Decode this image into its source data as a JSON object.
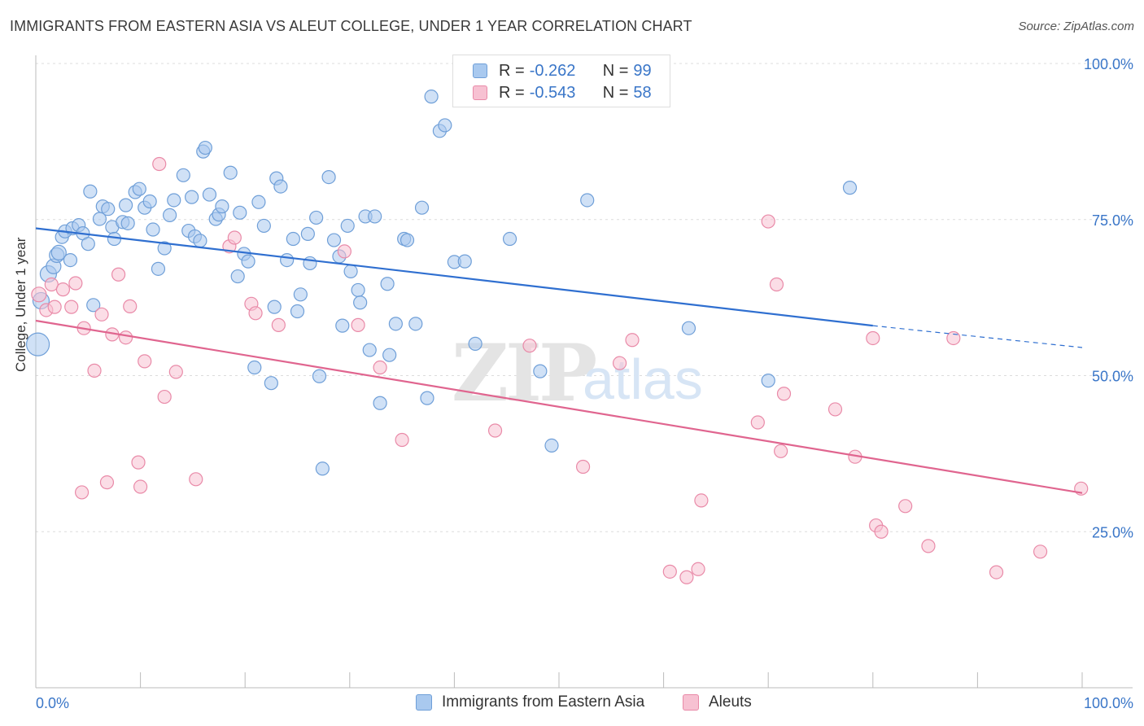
{
  "header": {
    "title": "IMMIGRANTS FROM EASTERN ASIA VS ALEUT COLLEGE, UNDER 1 YEAR CORRELATION CHART",
    "source": "Source: ZipAtlas.com"
  },
  "legend": {
    "r_label": "R =",
    "n_label": "N =",
    "rows": [
      {
        "r": "-0.262",
        "n": "99",
        "color": "#a9c9ef",
        "border": "#6f9fd8"
      },
      {
        "r": "-0.543",
        "n": "58",
        "color": "#f7c1d2",
        "border": "#e98aa8"
      }
    ]
  },
  "watermark": {
    "zip": "ZIP",
    "atlas": "atlas"
  },
  "chart_data": {
    "type": "scatter",
    "title": "IMMIGRANTS FROM EASTERN ASIA VS ALEUT COLLEGE, UNDER 1 YEAR CORRELATION CHART",
    "xlabel": "",
    "ylabel": "College, Under 1 year",
    "xlim": [
      0,
      100
    ],
    "ylim": [
      0,
      100
    ],
    "x_tick_labels": [
      "0.0%",
      "100.0%"
    ],
    "y_tick_labels": [
      {
        "value": 25,
        "label": "25.0%"
      },
      {
        "value": 50,
        "label": "50.0%"
      },
      {
        "value": 75,
        "label": "75.0%"
      },
      {
        "value": 100,
        "label": "100.0%"
      }
    ],
    "grid": true,
    "series": [
      {
        "name": "Immigrants from Eastern Asia",
        "color": "#6f9fd8",
        "fill": "#a9c9ef",
        "line_color": "#2f6fd0",
        "trend": {
          "x0": 0,
          "y0": 73.6,
          "x1": 80,
          "y1": 58.0,
          "dash_to_x": 100,
          "dash_to_y": 54.5
        },
        "points": [
          [
            0.2,
            55.0,
            14
          ],
          [
            0.5,
            62.0,
            10
          ],
          [
            1.2,
            66.3,
            10
          ],
          [
            1.7,
            67.5,
            9
          ],
          [
            2.0,
            69.3,
            9
          ],
          [
            2.2,
            69.7,
            9
          ],
          [
            2.5,
            72.2,
            8
          ],
          [
            2.8,
            73.1,
            8
          ],
          [
            3.3,
            68.5,
            8
          ],
          [
            3.5,
            73.6,
            8
          ],
          [
            4.1,
            74.1,
            8
          ],
          [
            4.5,
            72.8,
            8
          ],
          [
            5.0,
            71.1,
            8
          ],
          [
            5.5,
            61.3,
            8
          ],
          [
            5.2,
            79.5,
            8
          ],
          [
            6.1,
            75.1,
            8
          ],
          [
            6.4,
            77.1,
            8
          ],
          [
            6.9,
            76.7,
            8
          ],
          [
            7.3,
            73.8,
            8
          ],
          [
            7.5,
            71.9,
            8
          ],
          [
            8.3,
            74.6,
            8
          ],
          [
            8.6,
            77.3,
            8
          ],
          [
            8.8,
            74.4,
            8
          ],
          [
            9.5,
            79.4,
            8
          ],
          [
            9.9,
            79.9,
            8
          ],
          [
            10.4,
            76.9,
            8
          ],
          [
            10.9,
            77.9,
            8
          ],
          [
            11.2,
            73.4,
            8
          ],
          [
            11.7,
            67.1,
            8
          ],
          [
            12.3,
            70.4,
            8
          ],
          [
            12.8,
            75.7,
            8
          ],
          [
            13.2,
            78.1,
            8
          ],
          [
            14.1,
            82.1,
            8
          ],
          [
            14.6,
            73.2,
            8
          ],
          [
            14.9,
            78.6,
            8
          ],
          [
            15.2,
            72.3,
            8
          ],
          [
            15.7,
            71.6,
            8
          ],
          [
            16.0,
            85.9,
            8
          ],
          [
            16.2,
            86.5,
            8
          ],
          [
            16.6,
            79.0,
            8
          ],
          [
            17.2,
            75.1,
            8
          ],
          [
            17.5,
            75.8,
            8
          ],
          [
            17.8,
            77.1,
            8
          ],
          [
            18.6,
            82.5,
            8
          ],
          [
            19.3,
            65.9,
            8
          ],
          [
            19.5,
            76.1,
            8
          ],
          [
            19.9,
            69.5,
            8
          ],
          [
            20.3,
            68.3,
            8
          ],
          [
            20.9,
            51.3,
            8
          ],
          [
            21.3,
            77.8,
            8
          ],
          [
            21.8,
            74.0,
            8
          ],
          [
            22.5,
            48.8,
            8
          ],
          [
            22.8,
            61.0,
            8
          ],
          [
            23.0,
            81.6,
            8
          ],
          [
            23.4,
            80.3,
            8
          ],
          [
            24.0,
            68.5,
            8
          ],
          [
            24.6,
            71.9,
            8
          ],
          [
            25.0,
            60.3,
            8
          ],
          [
            25.3,
            63.0,
            8
          ],
          [
            26.0,
            72.7,
            8
          ],
          [
            26.2,
            68.0,
            8
          ],
          [
            26.8,
            75.3,
            8
          ],
          [
            27.1,
            49.9,
            8
          ],
          [
            27.4,
            35.1,
            8
          ],
          [
            28.0,
            81.8,
            8
          ],
          [
            28.5,
            71.7,
            8
          ],
          [
            29.0,
            69.1,
            8
          ],
          [
            29.3,
            58.0,
            8
          ],
          [
            29.8,
            74.0,
            8
          ],
          [
            30.1,
            66.7,
            8
          ],
          [
            30.8,
            63.7,
            8
          ],
          [
            31.0,
            61.7,
            8
          ],
          [
            31.5,
            75.5,
            8
          ],
          [
            31.9,
            54.1,
            8
          ],
          [
            32.4,
            75.5,
            8
          ],
          [
            32.9,
            45.6,
            8
          ],
          [
            33.6,
            64.7,
            8
          ],
          [
            33.8,
            53.3,
            8
          ],
          [
            34.4,
            58.3,
            8
          ],
          [
            35.2,
            71.9,
            8
          ],
          [
            35.5,
            71.7,
            8
          ],
          [
            36.3,
            58.3,
            8
          ],
          [
            36.9,
            76.9,
            8
          ],
          [
            37.4,
            46.4,
            8
          ],
          [
            37.8,
            94.7,
            8
          ],
          [
            38.6,
            89.2,
            8
          ],
          [
            39.1,
            90.1,
            8
          ],
          [
            40.0,
            68.2,
            8
          ],
          [
            41.0,
            68.3,
            8
          ],
          [
            42.0,
            55.1,
            8
          ],
          [
            45.3,
            71.9,
            8
          ],
          [
            48.2,
            50.7,
            8
          ],
          [
            49.3,
            38.8,
            8
          ],
          [
            52.7,
            78.1,
            8
          ],
          [
            62.4,
            57.6,
            8
          ],
          [
            70.0,
            49.2,
            8
          ],
          [
            77.8,
            80.1,
            8
          ]
        ]
      },
      {
        "name": "Aleuts",
        "color": "#e98aa8",
        "fill": "#f7c1d2",
        "line_color": "#e0658f",
        "trend": {
          "x0": 0,
          "y0": 58.8,
          "x1": 100,
          "y1": 31.2
        },
        "points": [
          [
            0.3,
            63.0,
            9
          ],
          [
            1.0,
            60.5,
            8
          ],
          [
            1.5,
            64.6,
            8
          ],
          [
            1.8,
            61.0,
            8
          ],
          [
            2.6,
            63.8,
            8
          ],
          [
            3.4,
            61.0,
            8
          ],
          [
            3.8,
            64.8,
            8
          ],
          [
            4.4,
            31.3,
            8
          ],
          [
            4.6,
            57.6,
            8
          ],
          [
            5.6,
            50.8,
            8
          ],
          [
            6.3,
            59.8,
            8
          ],
          [
            6.8,
            32.9,
            8
          ],
          [
            7.3,
            56.6,
            8
          ],
          [
            7.9,
            66.2,
            8
          ],
          [
            8.6,
            56.1,
            8
          ],
          [
            9.0,
            61.1,
            8
          ],
          [
            9.8,
            36.1,
            8
          ],
          [
            10.0,
            32.2,
            8
          ],
          [
            10.4,
            52.3,
            8
          ],
          [
            11.8,
            83.9,
            8
          ],
          [
            12.3,
            46.6,
            8
          ],
          [
            13.4,
            50.6,
            8
          ],
          [
            15.3,
            33.4,
            8
          ],
          [
            18.5,
            70.7,
            8
          ],
          [
            19.0,
            72.1,
            8
          ],
          [
            20.6,
            61.5,
            8
          ],
          [
            21.0,
            60.0,
            8
          ],
          [
            23.2,
            58.1,
            8
          ],
          [
            29.5,
            69.9,
            8
          ],
          [
            30.8,
            58.1,
            8
          ],
          [
            32.9,
            51.3,
            8
          ],
          [
            35.0,
            39.7,
            8
          ],
          [
            43.9,
            41.2,
            8
          ],
          [
            47.2,
            54.8,
            8
          ],
          [
            52.3,
            35.4,
            8
          ],
          [
            55.8,
            52.0,
            8
          ],
          [
            57.0,
            55.7,
            8
          ],
          [
            60.6,
            18.6,
            8
          ],
          [
            62.2,
            17.7,
            8
          ],
          [
            63.3,
            19.0,
            8
          ],
          [
            63.6,
            30.0,
            8
          ],
          [
            69.0,
            42.5,
            8
          ],
          [
            70.0,
            74.7,
            8
          ],
          [
            70.8,
            64.6,
            8
          ],
          [
            71.2,
            37.9,
            8
          ],
          [
            71.5,
            47.1,
            8
          ],
          [
            76.4,
            44.6,
            8
          ],
          [
            78.3,
            37.0,
            8
          ],
          [
            80.0,
            56.0,
            8
          ],
          [
            80.3,
            26.0,
            8
          ],
          [
            80.8,
            25.0,
            8
          ],
          [
            83.1,
            29.1,
            8
          ],
          [
            85.3,
            22.7,
            8
          ],
          [
            87.7,
            56.0,
            8
          ],
          [
            91.8,
            18.5,
            8
          ],
          [
            96.0,
            21.8,
            8
          ],
          [
            99.9,
            31.9,
            8
          ]
        ]
      }
    ]
  },
  "bottom_legend": {
    "items": [
      {
        "label": "Immigrants from Eastern Asia",
        "color": "#a9c9ef",
        "border": "#6f9fd8"
      },
      {
        "label": "Aleuts",
        "color": "#f7c1d2",
        "border": "#e98aa8"
      }
    ]
  }
}
